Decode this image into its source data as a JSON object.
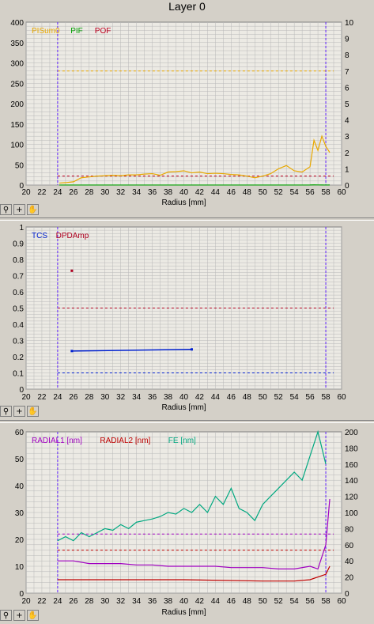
{
  "window": {
    "title": "Layer 0"
  },
  "toolbar": {
    "zoom_icon": "zoom-icon",
    "crosshair_icon": "crosshair-icon",
    "hand_icon": "pan-hand-icon"
  },
  "colors": {
    "plot_bg": "#eceae4",
    "grid": "#b8b8b8",
    "pisum": "#e8a800",
    "pif": "#00a000",
    "pof": "#c00020",
    "tcs": "#0020d0",
    "dpdamp": "#b00020",
    "radial1": "#a000c0",
    "radial2": "#c00000",
    "fe": "#00a880",
    "vline": "#6020ff"
  },
  "chart_data": [
    {
      "type": "line",
      "xlabel": "Radius [mm]",
      "xlim": [
        20,
        60
      ],
      "xticks": [
        20,
        22,
        24,
        26,
        28,
        30,
        32,
        34,
        36,
        38,
        40,
        42,
        44,
        46,
        48,
        50,
        52,
        54,
        56,
        58,
        60
      ],
      "ylim_left": [
        0,
        400
      ],
      "yticks_left": [
        0,
        50,
        100,
        150,
        200,
        250,
        300,
        350,
        400
      ],
      "ylim_right": [
        0,
        10
      ],
      "yticks_right": [
        0,
        1,
        2,
        3,
        4,
        5,
        6,
        7,
        8,
        9,
        10
      ],
      "legend": [
        "PISum0",
        "PIF",
        "POF"
      ],
      "vlines": [
        24,
        58
      ],
      "hlines": [
        {
          "y": 280,
          "color": "pisum"
        },
        {
          "y": 22,
          "color": "pof"
        }
      ],
      "series": [
        {
          "name": "PISum0",
          "color": "pisum",
          "x": [
            24.2,
            25,
            26,
            27,
            28,
            29,
            30,
            31,
            32,
            33,
            34,
            35,
            36,
            37,
            38,
            39,
            40,
            41,
            42,
            43,
            44,
            45,
            46,
            47,
            48,
            49,
            50,
            51,
            52,
            53,
            54,
            55,
            56,
            56.5,
            57,
            57.5,
            58,
            58.5
          ],
          "y": [
            5,
            6,
            8,
            18,
            20,
            22,
            23,
            24,
            23,
            25,
            25,
            27,
            28,
            24,
            32,
            33,
            35,
            30,
            32,
            28,
            29,
            28,
            26,
            25,
            22,
            18,
            22,
            28,
            40,
            48,
            35,
            32,
            45,
            110,
            85,
            120,
            95,
            80
          ]
        },
        {
          "name": "PIF",
          "color": "pif",
          "x": [
            24.2,
            30,
            40,
            50,
            54,
            55,
            56,
            56.5,
            57,
            57.5,
            58,
            58.5
          ],
          "y": [
            0.1,
            0.1,
            0.1,
            0.1,
            0.1,
            0.1,
            0.2,
            0.5,
            0.4,
            0.2,
            0.1,
            0.3
          ]
        }
      ]
    },
    {
      "type": "scatter",
      "xlabel": "Radius [mm]",
      "xlim": [
        20,
        60
      ],
      "xticks": [
        20,
        22,
        24,
        26,
        28,
        30,
        32,
        34,
        36,
        38,
        40,
        42,
        44,
        46,
        48,
        50,
        52,
        54,
        56,
        58,
        60
      ],
      "ylim": [
        0,
        1
      ],
      "yticks": [
        0,
        0.1,
        0.2,
        0.3,
        0.4,
        0.5,
        0.6,
        0.7,
        0.8,
        0.9,
        1.0
      ],
      "legend": [
        "TCS",
        "DPDAmp"
      ],
      "vlines": [
        24,
        58
      ],
      "hlines": [
        {
          "y": 0.5,
          "color": "dpdamp"
        },
        {
          "y": 0.1,
          "color": "tcs"
        }
      ],
      "series": [
        {
          "name": "TCS",
          "color": "tcs",
          "x": [
            25.8,
            41
          ],
          "y": [
            0.235,
            0.245
          ]
        },
        {
          "name": "DPDAmp",
          "color": "dpdamp",
          "x": [
            25.8
          ],
          "y": [
            0.73
          ]
        }
      ]
    },
    {
      "type": "line",
      "xlabel": "Radius [mm]",
      "xlim": [
        20,
        60
      ],
      "xticks": [
        20,
        22,
        24,
        26,
        28,
        30,
        32,
        34,
        36,
        38,
        40,
        42,
        44,
        46,
        48,
        50,
        52,
        54,
        56,
        58,
        60
      ],
      "ylim_left": [
        0,
        60
      ],
      "yticks_left": [
        0,
        10,
        20,
        30,
        40,
        50,
        60
      ],
      "ylim_right": [
        0,
        200
      ],
      "yticks_right": [
        0,
        20,
        40,
        60,
        80,
        100,
        120,
        140,
        160,
        180,
        200
      ],
      "legend": [
        "RADIAL1 [nm]",
        "RADIAL2 [nm]",
        "FE [nm]"
      ],
      "vlines": [
        24,
        58
      ],
      "hlines": [
        {
          "y": 22,
          "color": "radial1"
        },
        {
          "y": 16,
          "color": "radial2"
        }
      ],
      "series": [
        {
          "name": "RADIAL1 [nm]",
          "color": "radial1",
          "x": [
            24,
            26,
            28,
            30,
            32,
            34,
            36,
            38,
            40,
            42,
            44,
            46,
            48,
            50,
            52,
            54,
            56,
            57,
            58,
            58.5
          ],
          "y": [
            12,
            12,
            11,
            11,
            11,
            10.5,
            10.5,
            10,
            10,
            10,
            10,
            9.5,
            9.5,
            9.5,
            9,
            9,
            10,
            9,
            18,
            35
          ]
        },
        {
          "name": "RADIAL2 [nm]",
          "color": "radial2",
          "x": [
            24,
            30,
            40,
            50,
            54,
            56,
            57,
            58,
            58.5
          ],
          "y": [
            5,
            5,
            5,
            4.5,
            4.5,
            5,
            6,
            7,
            10
          ]
        },
        {
          "name": "FE [nm]",
          "color": "fe",
          "x": [
            24,
            25,
            26,
            27,
            28,
            29,
            30,
            31,
            32,
            33,
            34,
            35,
            36,
            37,
            38,
            39,
            40,
            41,
            42,
            43,
            44,
            45,
            46,
            47,
            48,
            49,
            50,
            51,
            52,
            53,
            54,
            55,
            56,
            57,
            58
          ],
          "y": [
            65,
            70,
            65,
            75,
            70,
            75,
            80,
            78,
            85,
            80,
            88,
            90,
            92,
            95,
            100,
            98,
            105,
            100,
            110,
            100,
            120,
            110,
            130,
            105,
            100,
            90,
            110,
            120,
            130,
            140,
            150,
            140,
            170,
            200,
            160
          ]
        }
      ]
    }
  ]
}
